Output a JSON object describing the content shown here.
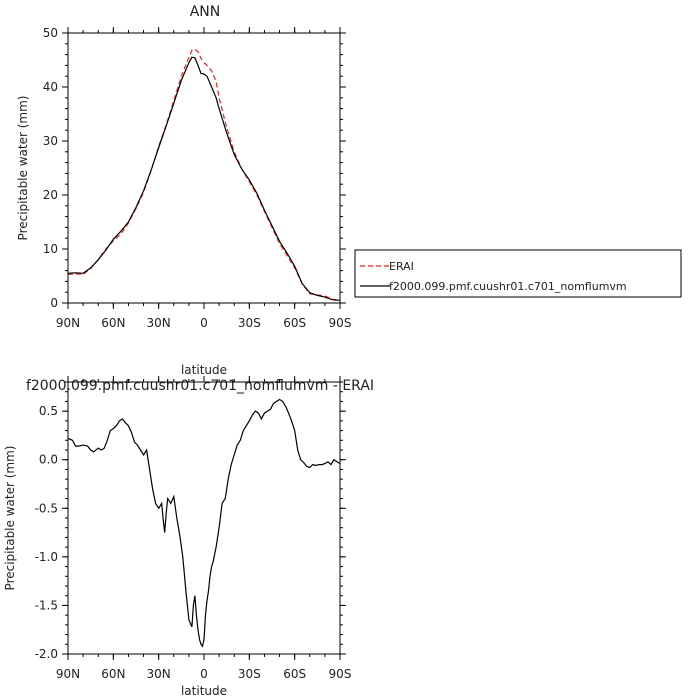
{
  "chart_data": [
    {
      "type": "line",
      "title": "ANN",
      "xlabel": "latitude",
      "ylabel": "Precipitable water (mm)",
      "x_ticks": [
        {
          "lat": 90,
          "label": "90N"
        },
        {
          "lat": 60,
          "label": "60N"
        },
        {
          "lat": 30,
          "label": "30N"
        },
        {
          "lat": 0,
          "label": "0"
        },
        {
          "lat": -30,
          "label": "30S"
        },
        {
          "lat": -60,
          "label": "60S"
        },
        {
          "lat": -90,
          "label": "90S"
        }
      ],
      "xlim": [
        90,
        -90
      ],
      "ylim": [
        0,
        50
      ],
      "y_ticks": [
        0,
        10,
        20,
        30,
        40,
        50
      ],
      "legend_position": "right",
      "series": [
        {
          "name": "ERAI",
          "color": "#e8251f",
          "dash": "dashed",
          "lat": [
            90,
            85,
            80,
            75,
            70,
            65,
            60,
            55,
            50,
            45,
            40,
            35,
            30,
            25,
            20,
            15,
            10,
            8,
            6,
            4,
            2,
            0,
            -2,
            -5,
            -8,
            -10,
            -15,
            -20,
            -25,
            -30,
            -35,
            -40,
            -45,
            -50,
            -55,
            -60,
            -65,
            -70,
            -75,
            -80,
            -85,
            -90
          ],
          "values": [
            5.3,
            5.4,
            5.3,
            6.4,
            8.0,
            10.0,
            11.5,
            12.8,
            14.8,
            17.5,
            20.5,
            24.5,
            29.0,
            33.0,
            37.5,
            42.0,
            45.5,
            46.8,
            47.0,
            46.5,
            45.3,
            44.5,
            44.0,
            43.0,
            41.0,
            38.0,
            32.5,
            28.0,
            24.8,
            22.5,
            20.0,
            17.0,
            14.0,
            11.0,
            8.8,
            6.5,
            3.5,
            1.7,
            1.5,
            1.3,
            0.7,
            0.5
          ]
        },
        {
          "name": "f2000.099.pmf.cuushr01.c701_nomflumvm",
          "color": "#000000",
          "dash": "solid",
          "lat": [
            90,
            85,
            80,
            75,
            70,
            65,
            60,
            55,
            50,
            45,
            40,
            35,
            30,
            25,
            20,
            15,
            10,
            8,
            6,
            4,
            2,
            0,
            -2,
            -5,
            -8,
            -10,
            -15,
            -20,
            -25,
            -30,
            -35,
            -40,
            -45,
            -50,
            -55,
            -60,
            -65,
            -70,
            -75,
            -80,
            -85,
            -90
          ],
          "values": [
            5.5,
            5.6,
            5.5,
            6.5,
            8.0,
            9.8,
            11.8,
            13.3,
            15.0,
            17.7,
            20.8,
            24.6,
            28.8,
            32.8,
            37.0,
            41.2,
            44.5,
            45.5,
            45.4,
            44.0,
            42.5,
            42.4,
            42.0,
            40.0,
            38.0,
            36.0,
            31.5,
            27.5,
            24.8,
            22.8,
            20.3,
            17.2,
            14.3,
            11.4,
            9.2,
            6.8,
            3.6,
            1.9,
            1.4,
            1.1,
            0.6,
            0.5
          ]
        }
      ]
    },
    {
      "type": "line",
      "title": "f2000.099.pmf.cuushr01.c701_nomflumvm - ERAI",
      "xlabel": "latitude",
      "ylabel": "Precipitable water (mm)",
      "x_ticks": [
        {
          "lat": 90,
          "label": "90N"
        },
        {
          "lat": 60,
          "label": "60N"
        },
        {
          "lat": 30,
          "label": "30N"
        },
        {
          "lat": 0,
          "label": "0"
        },
        {
          "lat": -30,
          "label": "30S"
        },
        {
          "lat": -60,
          "label": "60S"
        },
        {
          "lat": -90,
          "label": "90S"
        }
      ],
      "xlim": [
        90,
        -90
      ],
      "ylim": [
        -2.0,
        0.8
      ],
      "y_ticks": [
        "0.5",
        "0.0",
        "-0.5",
        "-1.0",
        "-1.5",
        "-2.0"
      ],
      "series": [
        {
          "name": "",
          "color": "#000000",
          "dash": "solid",
          "lat": [
            90,
            87,
            85,
            83,
            80,
            77,
            75,
            73,
            70,
            68,
            66,
            64,
            62,
            60,
            58,
            56,
            54,
            52,
            50,
            48,
            46,
            44,
            42,
            40,
            38,
            36,
            34,
            32,
            30,
            28,
            27,
            26,
            25,
            24,
            22,
            20,
            18,
            16,
            14,
            12,
            10,
            8,
            7,
            6,
            5,
            4,
            3,
            2,
            1,
            0,
            -1,
            -2,
            -3,
            -4,
            -5,
            -6,
            -8,
            -10,
            -12,
            -14,
            -16,
            -18,
            -20,
            -22,
            -24,
            -26,
            -28,
            -30,
            -32,
            -34,
            -36,
            -38,
            -40,
            -42,
            -44,
            -46,
            -48,
            -50,
            -52,
            -54,
            -56,
            -58,
            -60,
            -62,
            -64,
            -66,
            -68,
            -70,
            -72,
            -74,
            -76,
            -78,
            -80,
            -82,
            -84,
            -86,
            -88,
            -90
          ],
          "lat_comment": "",
          "values": [
            0.22,
            0.2,
            0.14,
            0.14,
            0.15,
            0.14,
            0.1,
            0.08,
            0.12,
            0.1,
            0.12,
            0.2,
            0.3,
            0.32,
            0.35,
            0.4,
            0.42,
            0.38,
            0.35,
            0.28,
            0.18,
            0.15,
            0.1,
            0.05,
            0.1,
            -0.1,
            -0.3,
            -0.45,
            -0.5,
            -0.45,
            -0.62,
            -0.75,
            -0.55,
            -0.4,
            -0.45,
            -0.38,
            -0.6,
            -0.78,
            -1.0,
            -1.35,
            -1.65,
            -1.72,
            -1.5,
            -1.4,
            -1.6,
            -1.75,
            -1.85,
            -1.9,
            -1.92,
            -1.85,
            -1.6,
            -1.45,
            -1.35,
            -1.2,
            -1.1,
            -1.05,
            -0.9,
            -0.7,
            -0.45,
            -0.4,
            -0.2,
            -0.05,
            0.05,
            0.15,
            0.2,
            0.3,
            0.35,
            0.4,
            0.46,
            0.5,
            0.48,
            0.42,
            0.48,
            0.5,
            0.52,
            0.58,
            0.6,
            0.62,
            0.6,
            0.55,
            0.48,
            0.4,
            0.3,
            0.1,
            0.0,
            -0.03,
            -0.07,
            -0.08,
            -0.05,
            -0.06,
            -0.05,
            -0.05,
            -0.04,
            -0.02,
            -0.05,
            0.0,
            -0.02,
            -0.04
          ]
        }
      ]
    }
  ]
}
